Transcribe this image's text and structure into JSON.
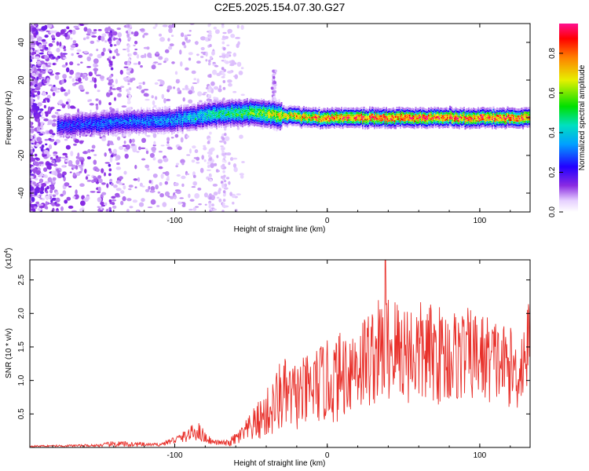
{
  "title": "C2E5.2025.154.07.30.G27",
  "chart_data": [
    {
      "type": "heatmap",
      "xlabel": "Height of straight line (km)",
      "ylabel": "Frequency (Hz)",
      "xlim": [
        -195,
        133
      ],
      "ylim": [
        -50,
        50
      ],
      "xticks": [
        -100,
        0,
        100
      ],
      "yticks": [
        -40,
        -20,
        0,
        20,
        40
      ],
      "colorbar": {
        "label": "Normalized spectral amplitude",
        "range": [
          0.0,
          0.95
        ],
        "ticks": [
          "0.0",
          "0.2",
          "0.4",
          "0.6",
          "0.8"
        ]
      },
      "ridge": {
        "description": "narrow band centered near 0 Hz, strongest above ~ -25 km",
        "x": [
          -175,
          -150,
          -125,
          -100,
          -75,
          -50,
          -25,
          0,
          25,
          50,
          75,
          100,
          133
        ],
        "center_hz": [
          -4,
          -3,
          -2,
          -1,
          2,
          3,
          1,
          0,
          0,
          0,
          0,
          0,
          0
        ],
        "peak_amplitude": [
          0.25,
          0.3,
          0.3,
          0.35,
          0.45,
          0.55,
          0.7,
          0.8,
          0.85,
          0.85,
          0.85,
          0.85,
          0.85
        ]
      }
    },
    {
      "type": "line",
      "xlabel": "Height of straight line (km)",
      "ylabel": "SNR (10 * v/v)",
      "scale_label": "(x10",
      "scale_exp": "4",
      "xlim": [
        -195,
        133
      ],
      "ylim": [
        0,
        2.8
      ],
      "xticks": [
        -100,
        0,
        100
      ],
      "yticks": [
        "0.5",
        "1.0",
        "1.5",
        "2.0",
        "2.5"
      ],
      "series": [
        {
          "name": "SNR",
          "color": "#e8302a",
          "envelope_x": [
            -195,
            -150,
            -140,
            -110,
            -95,
            -85,
            -80,
            -75,
            -65,
            -55,
            -45,
            -35,
            -30,
            -25,
            -15,
            -5,
            5,
            15,
            25,
            35,
            40,
            50,
            60,
            70,
            80,
            90,
            100,
            110,
            120,
            125,
            133
          ],
          "envelope_mean": [
            0.02,
            0.03,
            0.05,
            0.04,
            0.15,
            0.25,
            0.15,
            0.08,
            0.06,
            0.2,
            0.4,
            0.6,
            0.8,
            0.75,
            0.8,
            0.95,
            1.0,
            1.2,
            1.3,
            1.45,
            1.5,
            1.45,
            1.4,
            1.4,
            1.35,
            1.4,
            1.35,
            1.3,
            1.2,
            1.1,
            1.6
          ],
          "envelope_spread": [
            0.01,
            0.02,
            0.05,
            0.02,
            0.08,
            0.15,
            0.1,
            0.03,
            0.05,
            0.15,
            0.3,
            0.45,
            0.6,
            0.5,
            0.55,
            0.6,
            0.65,
            0.7,
            0.75,
            0.8,
            0.85,
            0.8,
            0.8,
            0.75,
            0.75,
            0.7,
            0.7,
            0.65,
            0.6,
            0.55,
            0.7
          ],
          "max": 2.8,
          "max_at_x": 38
        }
      ]
    }
  ]
}
